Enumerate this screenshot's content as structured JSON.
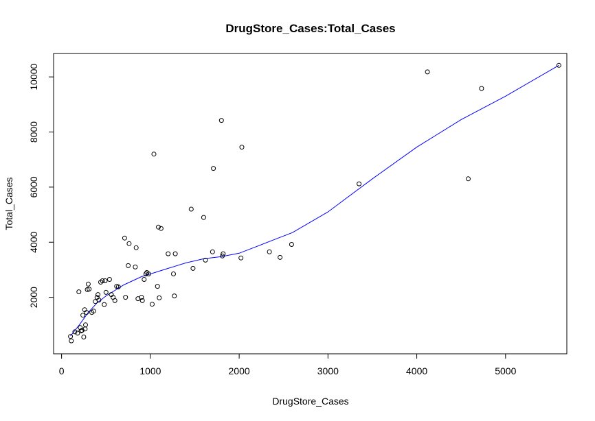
{
  "chart_data": {
    "type": "scatter",
    "title": "DrugStore_Cases:Total_Cases",
    "xlabel": "DrugStore_Cases",
    "ylabel": "Total_Cases",
    "xlim": [
      -90,
      5690
    ],
    "ylim": [
      -50,
      10850
    ],
    "x_ticks": [
      0,
      1000,
      2000,
      3000,
      4000,
      5000
    ],
    "y_ticks": [
      2000,
      4000,
      6000,
      8000,
      10000
    ],
    "x_tick_labels": [
      "0",
      "1000",
      "2000",
      "3000",
      "4000",
      "5000"
    ],
    "y_tick_labels": [
      "2000",
      "4000",
      "6000",
      "8000",
      "10000"
    ],
    "grid": false,
    "legend": "none",
    "series": [
      {
        "kind": "points",
        "marker": "open-circle",
        "color": "#000000",
        "x": [
          100,
          110,
          150,
          180,
          195,
          210,
          220,
          230,
          240,
          250,
          260,
          265,
          270,
          280,
          290,
          300,
          310,
          340,
          360,
          380,
          400,
          410,
          420,
          440,
          460,
          480,
          490,
          500,
          540,
          560,
          580,
          600,
          620,
          640,
          710,
          720,
          750,
          760,
          830,
          840,
          860,
          900,
          910,
          930,
          950,
          960,
          980,
          1020,
          1040,
          1080,
          1090,
          1100,
          1120,
          1200,
          1260,
          1270,
          1280,
          1460,
          1480,
          1600,
          1620,
          1700,
          1710,
          1800,
          1810,
          1820,
          2020,
          2030,
          2340,
          2460,
          2590,
          3350,
          4120,
          4580,
          4730,
          5600
        ],
        "y": [
          580,
          420,
          750,
          700,
          2200,
          900,
          780,
          800,
          1350,
          560,
          1550,
          850,
          1000,
          1450,
          2280,
          2480,
          2300,
          1450,
          1500,
          1850,
          2000,
          2100,
          1900,
          2550,
          2600,
          1740,
          2600,
          2180,
          2650,
          2100,
          2000,
          1880,
          2400,
          2380,
          4150,
          2000,
          3150,
          3950,
          3100,
          3800,
          1950,
          2000,
          1880,
          2650,
          2850,
          2900,
          2850,
          1750,
          7200,
          2400,
          4550,
          1980,
          4500,
          3580,
          2850,
          2050,
          3580,
          5200,
          3050,
          4900,
          3350,
          3650,
          6680,
          8420,
          3500,
          3580,
          3430,
          7450,
          3650,
          3450,
          3920,
          6120,
          10180,
          6300,
          9580,
          10420
        ]
      },
      {
        "kind": "line",
        "color": "#0000ff",
        "x": [
          100,
          200,
          300,
          400,
          500,
          600,
          700,
          800,
          900,
          1000,
          1200,
          1400,
          1600,
          1800,
          2000,
          2200,
          2400,
          2600,
          3000,
          3500,
          4000,
          4500,
          5000,
          5600
        ],
        "y": [
          600,
          1000,
          1450,
          1800,
          2050,
          2250,
          2450,
          2600,
          2750,
          2850,
          3050,
          3250,
          3400,
          3480,
          3600,
          3850,
          4100,
          4350,
          5100,
          6300,
          7450,
          8450,
          9300,
          10420
        ]
      }
    ]
  }
}
